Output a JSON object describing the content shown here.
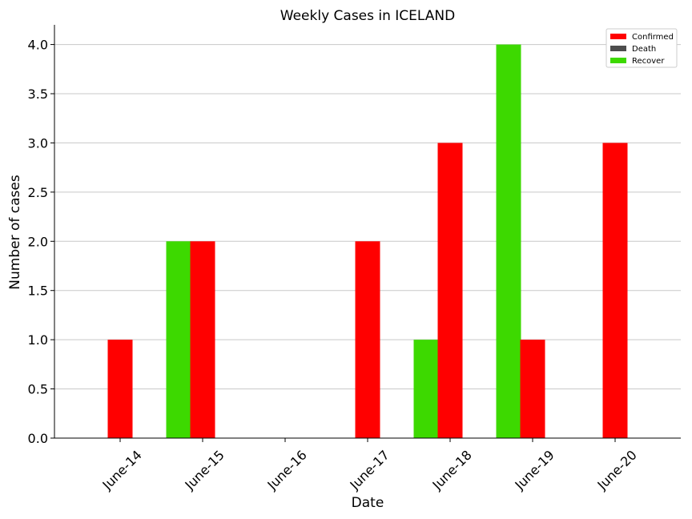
{
  "chart_data": {
    "type": "bar",
    "title": "Weekly Cases in ICELAND",
    "xlabel": "Date",
    "ylabel": "Number of cases",
    "categories": [
      "June-14",
      "June-15",
      "June-16",
      "June-17",
      "June-18",
      "June-19",
      "June-20"
    ],
    "ylim": [
      0,
      4.2
    ],
    "yticks": [
      "0.0",
      "0.5",
      "1.0",
      "1.5",
      "2.0",
      "2.5",
      "3.0",
      "3.5",
      "4.0"
    ],
    "grid": "horizontal",
    "legend_position": "top-right",
    "series": [
      {
        "name": "Confirmed",
        "color": "#ff0000",
        "values": [
          1,
          2,
          0,
          2,
          3,
          1,
          3
        ]
      },
      {
        "name": "Death",
        "color": "#4d4d4d",
        "values": [
          0,
          0,
          0,
          0,
          0,
          0,
          0
        ]
      },
      {
        "name": "Recover",
        "color": "#3dd900",
        "values": [
          0,
          2,
          0,
          0,
          1,
          4,
          0
        ]
      }
    ]
  }
}
